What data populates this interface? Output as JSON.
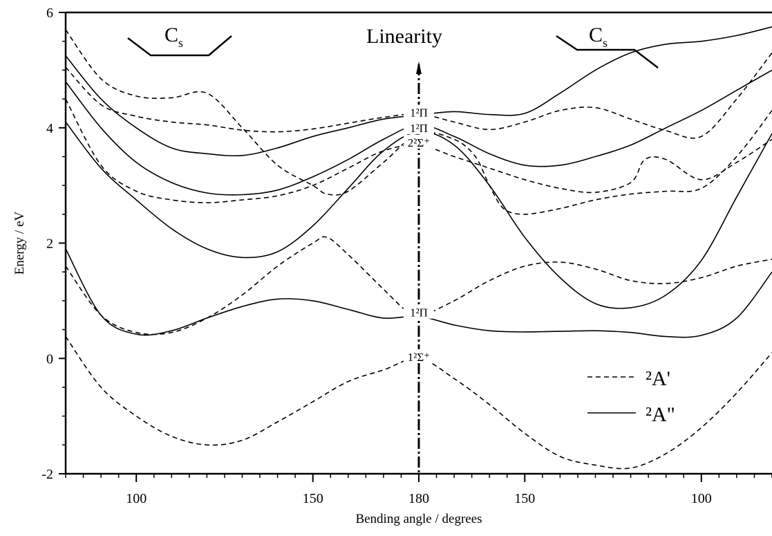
{
  "chart_data": {
    "type": "line",
    "xlabel": "Bending angle / degrees",
    "ylabel": "Energy / eV",
    "ylim": [
      -2,
      6
    ],
    "yticks": [
      -2,
      0,
      2,
      4,
      6
    ],
    "x_axis_note": "angle axis runs 90 to 180 (left half) then 180 to 90 (right half); x values below are positions on a 0-100 scale, 50 = linearity (180 degrees)",
    "xticks": [
      {
        "pos": 10.0,
        "label": "100"
      },
      {
        "pos": 35.0,
        "label": "150"
      },
      {
        "pos": 50.0,
        "label": "180"
      },
      {
        "pos": 65.0,
        "label": "150"
      },
      {
        "pos": 90.0,
        "label": "100"
      }
    ],
    "annotations": {
      "left_region": "C",
      "left_region_sub": "s",
      "center": "Linearity",
      "right_region": "C",
      "right_region_sub": "s",
      "states": [
        {
          "text": "1²Π",
          "x": 50,
          "y": 4.22
        },
        {
          "text": "1²Π",
          "x": 50,
          "y": 3.95
        },
        {
          "text": "2²Σ⁺",
          "x": 50,
          "y": 3.7
        },
        {
          "text": "1²Π",
          "x": 50,
          "y": 0.75
        },
        {
          "text": "1²Σ⁺",
          "x": 50,
          "y": -0.02
        }
      ]
    },
    "legend": {
      "position": "lower-right",
      "entries": [
        {
          "name": "²A'",
          "style": "dashed"
        },
        {
          "name": "²A\"",
          "style": "solid"
        }
      ]
    },
    "series": [
      {
        "group": "²A'",
        "style": "dashed",
        "points": [
          [
            0,
            0.38
          ],
          [
            5,
            -0.5
          ],
          [
            10,
            -1.0
          ],
          [
            15,
            -1.35
          ],
          [
            20,
            -1.5
          ],
          [
            25,
            -1.42
          ],
          [
            30,
            -1.1
          ],
          [
            35,
            -0.75
          ],
          [
            40,
            -0.4
          ],
          [
            45,
            -0.2
          ],
          [
            50,
            0.0
          ],
          [
            55,
            -0.35
          ],
          [
            60,
            -0.8
          ],
          [
            65,
            -1.3
          ],
          [
            70,
            -1.7
          ],
          [
            75,
            -1.85
          ],
          [
            80,
            -1.9
          ],
          [
            85,
            -1.65
          ],
          [
            90,
            -1.2
          ],
          [
            95,
            -0.6
          ],
          [
            100,
            0.1
          ]
        ]
      },
      {
        "group": "²A'",
        "style": "dashed",
        "points": [
          [
            0,
            1.6
          ],
          [
            5,
            0.75
          ],
          [
            10,
            0.45
          ],
          [
            15,
            0.45
          ],
          [
            20,
            0.7
          ],
          [
            25,
            1.1
          ],
          [
            30,
            1.6
          ],
          [
            35,
            2.0
          ],
          [
            37,
            2.1
          ],
          [
            40,
            1.8
          ],
          [
            45,
            1.2
          ],
          [
            48,
            0.85
          ],
          [
            50,
            0.73
          ],
          [
            55,
            1.0
          ],
          [
            60,
            1.35
          ],
          [
            65,
            1.6
          ],
          [
            70,
            1.67
          ],
          [
            75,
            1.55
          ],
          [
            80,
            1.35
          ],
          [
            85,
            1.3
          ],
          [
            90,
            1.4
          ],
          [
            95,
            1.6
          ],
          [
            100,
            1.72
          ]
        ]
      },
      {
        "group": "²A'",
        "style": "dashed",
        "points": [
          [
            0,
            4.5
          ],
          [
            5,
            3.35
          ],
          [
            10,
            2.9
          ],
          [
            15,
            2.75
          ],
          [
            20,
            2.7
          ],
          [
            25,
            2.75
          ],
          [
            30,
            2.82
          ],
          [
            35,
            3.0
          ],
          [
            40,
            3.3
          ],
          [
            45,
            3.6
          ],
          [
            50,
            3.7
          ],
          [
            55,
            3.5
          ],
          [
            60,
            3.3
          ],
          [
            65,
            3.1
          ],
          [
            70,
            2.95
          ],
          [
            75,
            2.88
          ],
          [
            80,
            3.05
          ],
          [
            82,
            3.45
          ],
          [
            85,
            3.45
          ],
          [
            90,
            3.1
          ],
          [
            95,
            3.4
          ],
          [
            100,
            3.8
          ]
        ]
      },
      {
        "group": "²A'",
        "style": "dashed",
        "points": [
          [
            0,
            5.7
          ],
          [
            5,
            4.85
          ],
          [
            10,
            4.55
          ],
          [
            15,
            4.52
          ],
          [
            20,
            4.6
          ],
          [
            25,
            4.0
          ],
          [
            30,
            3.35
          ],
          [
            35,
            3.0
          ],
          [
            37,
            2.85
          ],
          [
            40,
            2.9
          ],
          [
            45,
            3.4
          ],
          [
            50,
            3.9
          ],
          [
            55,
            3.8
          ],
          [
            58,
            3.5
          ],
          [
            60,
            3.0
          ],
          [
            62,
            2.6
          ],
          [
            65,
            2.5
          ],
          [
            70,
            2.6
          ],
          [
            75,
            2.75
          ],
          [
            80,
            2.85
          ],
          [
            85,
            2.9
          ],
          [
            90,
            2.95
          ],
          [
            95,
            3.5
          ],
          [
            100,
            4.3
          ]
        ]
      },
      {
        "group": "²A'",
        "style": "dashed",
        "points": [
          [
            0,
            5.05
          ],
          [
            5,
            4.4
          ],
          [
            10,
            4.2
          ],
          [
            15,
            4.1
          ],
          [
            20,
            4.05
          ],
          [
            25,
            3.96
          ],
          [
            30,
            3.93
          ],
          [
            35,
            3.98
          ],
          [
            40,
            4.08
          ],
          [
            45,
            4.18
          ],
          [
            50,
            4.24
          ],
          [
            55,
            4.1
          ],
          [
            60,
            3.97
          ],
          [
            65,
            4.1
          ],
          [
            70,
            4.3
          ],
          [
            75,
            4.35
          ],
          [
            80,
            4.15
          ],
          [
            85,
            3.95
          ],
          [
            90,
            3.85
          ],
          [
            95,
            4.5
          ],
          [
            100,
            5.3
          ]
        ]
      },
      {
        "group": "²A\"",
        "style": "solid",
        "points": [
          [
            0,
            1.9
          ],
          [
            5,
            0.75
          ],
          [
            10,
            0.42
          ],
          [
            15,
            0.48
          ],
          [
            20,
            0.7
          ],
          [
            25,
            0.9
          ],
          [
            30,
            1.03
          ],
          [
            35,
            1.0
          ],
          [
            40,
            0.85
          ],
          [
            45,
            0.7
          ],
          [
            50,
            0.73
          ],
          [
            55,
            0.58
          ],
          [
            60,
            0.48
          ],
          [
            65,
            0.46
          ],
          [
            70,
            0.47
          ],
          [
            75,
            0.48
          ],
          [
            80,
            0.45
          ],
          [
            85,
            0.38
          ],
          [
            90,
            0.4
          ],
          [
            95,
            0.7
          ],
          [
            100,
            1.5
          ]
        ]
      },
      {
        "group": "²A\"",
        "style": "solid",
        "points": [
          [
            0,
            4.1
          ],
          [
            5,
            3.3
          ],
          [
            10,
            2.75
          ],
          [
            15,
            2.25
          ],
          [
            20,
            1.9
          ],
          [
            25,
            1.75
          ],
          [
            30,
            1.85
          ],
          [
            35,
            2.3
          ],
          [
            40,
            2.95
          ],
          [
            45,
            3.6
          ],
          [
            50,
            3.93
          ],
          [
            55,
            3.7
          ],
          [
            60,
            3.0
          ],
          [
            65,
            2.1
          ],
          [
            70,
            1.4
          ],
          [
            75,
            0.95
          ],
          [
            80,
            0.88
          ],
          [
            85,
            1.1
          ],
          [
            90,
            1.7
          ],
          [
            95,
            2.8
          ],
          [
            100,
            3.9
          ]
        ]
      },
      {
        "group": "²A\"",
        "style": "solid",
        "points": [
          [
            0,
            4.8
          ],
          [
            5,
            4.0
          ],
          [
            10,
            3.4
          ],
          [
            15,
            3.05
          ],
          [
            20,
            2.87
          ],
          [
            25,
            2.84
          ],
          [
            30,
            2.92
          ],
          [
            35,
            3.15
          ],
          [
            40,
            3.45
          ],
          [
            45,
            3.8
          ],
          [
            50,
            4.05
          ],
          [
            55,
            3.85
          ],
          [
            60,
            3.55
          ],
          [
            65,
            3.35
          ],
          [
            70,
            3.35
          ],
          [
            75,
            3.5
          ],
          [
            80,
            3.7
          ],
          [
            85,
            4.0
          ],
          [
            90,
            4.3
          ],
          [
            95,
            4.65
          ],
          [
            100,
            5.0
          ]
        ]
      },
      {
        "group": "²A\"",
        "style": "solid",
        "points": [
          [
            0,
            5.25
          ],
          [
            5,
            4.5
          ],
          [
            10,
            4.0
          ],
          [
            15,
            3.65
          ],
          [
            20,
            3.55
          ],
          [
            25,
            3.52
          ],
          [
            30,
            3.65
          ],
          [
            35,
            3.85
          ],
          [
            40,
            4.0
          ],
          [
            45,
            4.15
          ],
          [
            50,
            4.22
          ],
          [
            55,
            4.28
          ],
          [
            60,
            4.23
          ],
          [
            65,
            4.25
          ],
          [
            70,
            4.6
          ],
          [
            75,
            5.0
          ],
          [
            80,
            5.3
          ],
          [
            85,
            5.45
          ],
          [
            90,
            5.5
          ],
          [
            95,
            5.6
          ],
          [
            100,
            5.75
          ]
        ]
      }
    ]
  }
}
